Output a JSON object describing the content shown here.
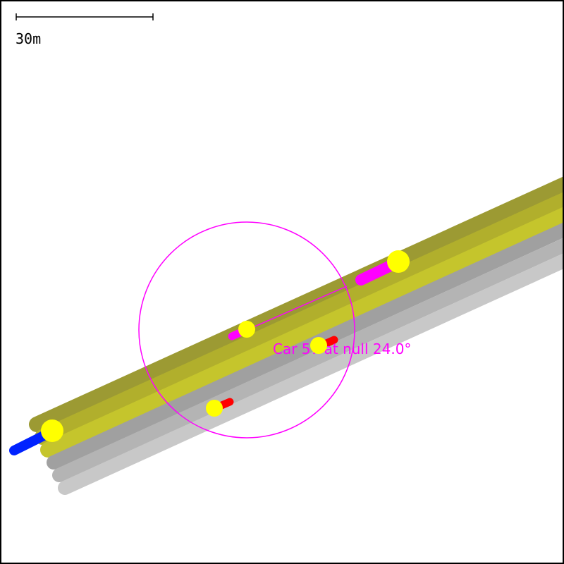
{
  "scale_bar": {
    "label": "30m",
    "color": "#000000"
  },
  "selected_car": {
    "label": "Car 57 at null 24.0°",
    "color": "#ff00ff"
  },
  "colors": {
    "lane_olive_dark": "#9c9a33",
    "lane_olive": "#b1af2c",
    "lane_yellow": "#c5c52c",
    "lane_gray_dark": "#a0a0a0",
    "lane_gray": "#b4b4b4",
    "lane_gray_light": "#c8c8c8",
    "car_body_blue": "#0022ff",
    "car_body_magenta": "#ff00ff",
    "car_body_red": "#ff0000",
    "car_marker": "#ffff00",
    "selection": "#ff00ff",
    "border": "#000000",
    "background": "#ffffff"
  },
  "lanes": [
    {
      "name": "lane-1",
      "color_key": "lane_olive_dark"
    },
    {
      "name": "lane-2",
      "color_key": "lane_olive"
    },
    {
      "name": "lane-3",
      "color_key": "lane_yellow"
    },
    {
      "name": "lane-4",
      "color_key": "lane_gray_dark"
    },
    {
      "name": "lane-5",
      "color_key": "lane_gray"
    },
    {
      "name": "lane-6",
      "color_key": "lane_gray_light"
    }
  ],
  "cars": [
    {
      "name": "car-blue",
      "color_key": "car_body_blue"
    },
    {
      "name": "car-magenta-front",
      "color_key": "car_body_magenta"
    },
    {
      "name": "car-magenta-selected",
      "color_key": "car_body_magenta"
    },
    {
      "name": "car-red-middle",
      "color_key": "car_body_red"
    },
    {
      "name": "car-red-lower",
      "color_key": "car_body_red"
    }
  ]
}
